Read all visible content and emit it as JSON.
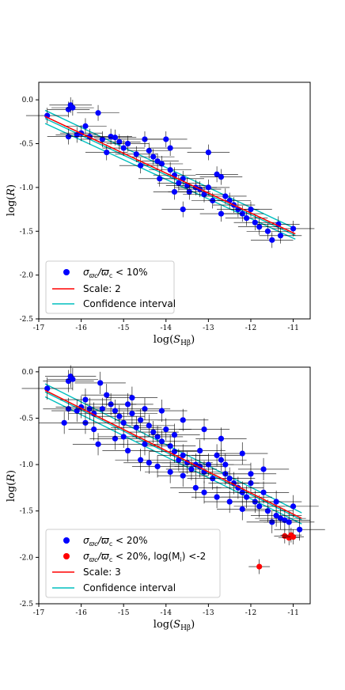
{
  "colors": {
    "point_main": "#0000ff",
    "point_faint": "#ff0000",
    "fit_line": "#ff0000",
    "confidence": "#00bfbf",
    "errorbar": "#000000"
  },
  "chart_data": [
    {
      "type": "scatter",
      "title": "",
      "xlabel": "log(S_Hβ)",
      "ylabel": "log(R)",
      "xlim": [
        -17,
        -10.6
      ],
      "ylim": [
        -2.5,
        0.2
      ],
      "xticks": [
        "-17",
        "-16",
        "-15",
        "-14",
        "-13",
        "-12",
        "-11"
      ],
      "yticks": [
        "-2.5",
        "-2.0",
        "-1.5",
        "-1.0",
        "-0.5",
        "0.0"
      ],
      "legend_position": "bottom-left",
      "legend": [
        "σϖc/ϖc < 10%",
        "Scale: 2",
        "Confidence interval"
      ],
      "series": [
        {
          "name": "σϖc/ϖc < 10%",
          "kind": "points",
          "x_err": 0.5,
          "y_err": 0.09,
          "points": [
            [
              -16.8,
              -0.18
            ],
            [
              -16.3,
              -0.11
            ],
            [
              -16.25,
              -0.06
            ],
            [
              -16.2,
              -0.09
            ],
            [
              -15.9,
              -0.3
            ],
            [
              -15.6,
              -0.15
            ],
            [
              -16.3,
              -0.42
            ],
            [
              -16.1,
              -0.4
            ],
            [
              -16.0,
              -0.38
            ],
            [
              -15.8,
              -0.42
            ],
            [
              -15.5,
              -0.45
            ],
            [
              -15.3,
              -0.42
            ],
            [
              -15.2,
              -0.43
            ],
            [
              -15.1,
              -0.48
            ],
            [
              -15.4,
              -0.6
            ],
            [
              -15.0,
              -0.55
            ],
            [
              -14.9,
              -0.5
            ],
            [
              -14.7,
              -0.62
            ],
            [
              -14.5,
              -0.45
            ],
            [
              -14.4,
              -0.58
            ],
            [
              -14.3,
              -0.65
            ],
            [
              -14.2,
              -0.7
            ],
            [
              -14.1,
              -0.73
            ],
            [
              -13.9,
              -0.8
            ],
            [
              -13.8,
              -0.86
            ],
            [
              -13.7,
              -0.95
            ],
            [
              -13.6,
              -0.9
            ],
            [
              -13.5,
              -0.98
            ],
            [
              -13.45,
              -1.05
            ],
            [
              -13.3,
              -1.0
            ],
            [
              -13.2,
              -1.02
            ],
            [
              -13.1,
              -1.08
            ],
            [
              -13.0,
              -1.0
            ],
            [
              -12.9,
              -1.15
            ],
            [
              -12.8,
              -0.85
            ],
            [
              -12.7,
              -0.88
            ],
            [
              -12.6,
              -1.1
            ],
            [
              -12.5,
              -1.15
            ],
            [
              -12.4,
              -1.2
            ],
            [
              -12.3,
              -1.25
            ],
            [
              -12.2,
              -1.3
            ],
            [
              -12.1,
              -1.35
            ],
            [
              -11.9,
              -1.4
            ],
            [
              -11.8,
              -1.45
            ],
            [
              -11.6,
              -1.5
            ],
            [
              -11.5,
              -1.6
            ],
            [
              -11.3,
              -1.55
            ],
            [
              -11.0,
              -1.47
            ],
            [
              -14.0,
              -0.45
            ],
            [
              -13.9,
              -0.55
            ],
            [
              -14.6,
              -0.75
            ],
            [
              -14.15,
              -0.9
            ],
            [
              -13.6,
              -1.25
            ],
            [
              -13.0,
              -0.6
            ],
            [
              -12.7,
              -1.3
            ],
            [
              -12.0,
              -1.25
            ],
            [
              -11.35,
              -1.42
            ],
            [
              -13.8,
              -1.05
            ]
          ]
        },
        {
          "name": "Scale: 2",
          "kind": "line",
          "x": [
            -16.85,
            -10.95
          ],
          "y": [
            -0.19,
            -1.53
          ]
        },
        {
          "name": "Confidence interval",
          "kind": "band",
          "x": [
            -16.85,
            -10.95
          ],
          "y_upper": [
            -0.12,
            -1.47
          ],
          "y_lower": [
            -0.27,
            -1.59
          ]
        }
      ]
    },
    {
      "type": "scatter",
      "title": "",
      "xlabel": "log(S_Hβ)",
      "ylabel": "log(R)",
      "xlim": [
        -17,
        -10.6
      ],
      "ylim": [
        -2.5,
        0.05
      ],
      "xticks": [
        "-17",
        "-16",
        "-15",
        "-14",
        "-13",
        "-12",
        "-11"
      ],
      "yticks": [
        "-2.5",
        "-2.0",
        "-1.5",
        "-1.0",
        "-0.5",
        "0.0"
      ],
      "legend_position": "bottom-left",
      "legend": [
        "σϖc/ϖc < 20%",
        "σϖc/ϖc < 20%, log(Mi) <-2",
        "Scale: 3",
        "Confidence interval"
      ],
      "series": [
        {
          "name": "σϖc/ϖc < 20%",
          "kind": "points",
          "x_err": 0.6,
          "y_err": 0.12,
          "points": [
            [
              -16.8,
              -0.18
            ],
            [
              -16.3,
              -0.1
            ],
            [
              -16.25,
              -0.05
            ],
            [
              -16.2,
              -0.08
            ],
            [
              -15.9,
              -0.3
            ],
            [
              -15.55,
              -0.12
            ],
            [
              -16.3,
              -0.4
            ],
            [
              -16.1,
              -0.42
            ],
            [
              -16.0,
              -0.38
            ],
            [
              -15.8,
              -0.4
            ],
            [
              -15.9,
              -0.55
            ],
            [
              -15.7,
              -0.45
            ],
            [
              -15.5,
              -0.4
            ],
            [
              -15.3,
              -0.35
            ],
            [
              -15.2,
              -0.42
            ],
            [
              -15.1,
              -0.48
            ],
            [
              -15.0,
              -0.55
            ],
            [
              -14.9,
              -0.35
            ],
            [
              -14.8,
              -0.45
            ],
            [
              -14.7,
              -0.6
            ],
            [
              -14.6,
              -0.52
            ],
            [
              -14.5,
              -0.4
            ],
            [
              -14.4,
              -0.58
            ],
            [
              -14.3,
              -0.65
            ],
            [
              -14.2,
              -0.7
            ],
            [
              -14.1,
              -0.75
            ],
            [
              -14.0,
              -0.62
            ],
            [
              -13.9,
              -0.8
            ],
            [
              -13.8,
              -0.86
            ],
            [
              -13.7,
              -0.95
            ],
            [
              -13.6,
              -0.9
            ],
            [
              -13.5,
              -0.98
            ],
            [
              -13.4,
              -1.05
            ],
            [
              -13.3,
              -1.0
            ],
            [
              -13.2,
              -1.02
            ],
            [
              -13.1,
              -1.08
            ],
            [
              -13.0,
              -1.0
            ],
            [
              -12.9,
              -1.15
            ],
            [
              -12.8,
              -0.9
            ],
            [
              -12.7,
              -0.95
            ],
            [
              -12.6,
              -1.1
            ],
            [
              -12.5,
              -1.15
            ],
            [
              -12.4,
              -1.2
            ],
            [
              -12.3,
              -1.25
            ],
            [
              -12.2,
              -1.3
            ],
            [
              -12.1,
              -1.35
            ],
            [
              -12.0,
              -1.2
            ],
            [
              -11.9,
              -1.4
            ],
            [
              -11.8,
              -1.45
            ],
            [
              -11.7,
              -1.3
            ],
            [
              -11.6,
              -1.5
            ],
            [
              -11.5,
              -1.62
            ],
            [
              -11.4,
              -1.55
            ],
            [
              -11.3,
              -1.58
            ],
            [
              -11.2,
              -1.6
            ],
            [
              -11.0,
              -1.45
            ],
            [
              -10.85,
              -1.7
            ],
            [
              -15.6,
              -0.78
            ],
            [
              -15.2,
              -0.72
            ],
            [
              -14.9,
              -0.85
            ],
            [
              -14.6,
              -0.95
            ],
            [
              -14.4,
              -0.98
            ],
            [
              -14.2,
              -1.02
            ],
            [
              -13.9,
              -1.08
            ],
            [
              -13.6,
              -1.12
            ],
            [
              -13.3,
              -1.25
            ],
            [
              -13.1,
              -1.3
            ],
            [
              -12.8,
              -1.35
            ],
            [
              -12.5,
              -1.4
            ],
            [
              -12.2,
              -1.48
            ],
            [
              -15.4,
              -0.25
            ],
            [
              -14.8,
              -0.28
            ],
            [
              -14.1,
              -0.42
            ],
            [
              -13.6,
              -0.52
            ],
            [
              -13.1,
              -0.62
            ],
            [
              -12.7,
              -0.72
            ],
            [
              -12.2,
              -0.88
            ],
            [
              -11.7,
              -1.05
            ],
            [
              -16.4,
              -0.55
            ],
            [
              -15.7,
              -0.62
            ],
            [
              -15.0,
              -0.7
            ],
            [
              -14.5,
              -0.78
            ],
            [
              -13.8,
              -0.68
            ],
            [
              -13.2,
              -0.85
            ],
            [
              -12.6,
              -1.0
            ],
            [
              -12.0,
              -1.1
            ],
            [
              -11.4,
              -1.4
            ],
            [
              -11.1,
              -1.62
            ]
          ]
        },
        {
          "name": "σϖc/ϖc < 20%, log(Mi) <-2",
          "kind": "points",
          "x_err": 0.25,
          "y_err": 0.08,
          "points": [
            [
              -11.8,
              -2.1
            ],
            [
              -11.2,
              -1.77
            ],
            [
              -11.1,
              -1.79
            ],
            [
              -11.05,
              -1.76
            ],
            [
              -11.0,
              -1.78
            ]
          ]
        },
        {
          "name": "Scale: 3",
          "kind": "line",
          "x": [
            -16.85,
            -10.8
          ],
          "y": [
            -0.2,
            -1.58
          ]
        },
        {
          "name": "Confidence interval",
          "kind": "band",
          "x": [
            -16.85,
            -10.8
          ],
          "y_upper": [
            -0.13,
            -1.52
          ],
          "y_lower": [
            -0.27,
            -1.64
          ]
        }
      ]
    }
  ],
  "legend_labels": {
    "top": {
      "l1_sym": "σ",
      "l1_sub1": "ϖc",
      "l1_mid": "/ϖ",
      "l1_sub2": "c",
      "l1_tail": " < 10%",
      "l2": "Scale: 2",
      "l3": "Confidence interval"
    },
    "bottom": {
      "l1_sym": "σ",
      "l1_sub1": "ϖc",
      "l1_mid": "/ϖ",
      "l1_sub2": "c",
      "l1_tail": " < 20%",
      "l2_sym": "σ",
      "l2_sub1": "ϖc",
      "l2_mid": "/ϖ",
      "l2_sub2": "c",
      "l2_tail": " < 20%, log(M",
      "l2_sub3": "i",
      "l2_end": ") <-2",
      "l3": "Scale: 3",
      "l4": "Confidence interval"
    }
  },
  "axis_labels": {
    "x_main": "log(",
    "x_S": "S",
    "x_sub": "Hβ",
    "x_close": ")",
    "y_main": "log(",
    "y_R": "R",
    "y_close": ")"
  }
}
